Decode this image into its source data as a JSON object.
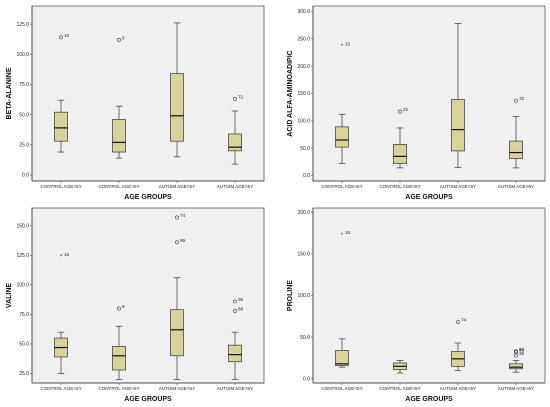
{
  "chart_data": [
    {
      "type": "box",
      "ylabel": "BETA-ALANINE",
      "xlabel": "AGE GROUPS",
      "ylim": [
        -5,
        140
      ],
      "yticks": [
        "0.0",
        "25.0",
        "50.0",
        "75.0",
        "100.0",
        "125.0"
      ],
      "ytick_values": [
        0,
        25,
        50,
        75,
        100,
        125
      ],
      "categories": [
        "CONTROL AGE<5Y",
        "CONTROL AGE>5Y",
        "AUTISM AGE<5Y",
        "AUTISM AGE>5Y"
      ],
      "boxes": [
        {
          "min": 19,
          "q1": 28,
          "median": 39,
          "q3": 52,
          "max": 62,
          "outliers": [
            {
              "value": 114,
              "label": "16",
              "kind": "circle"
            }
          ]
        },
        {
          "min": 14,
          "q1": 19,
          "median": 27,
          "q3": 46,
          "max": 57,
          "outliers": [
            {
              "value": 112,
              "label": "5",
              "kind": "circle"
            }
          ]
        },
        {
          "min": 15,
          "q1": 28,
          "median": 49,
          "q3": 84,
          "max": 126,
          "outliers": []
        },
        {
          "min": 9,
          "q1": 20,
          "median": 23,
          "q3": 34,
          "max": 53,
          "outliers": [
            {
              "value": 63,
              "label": "72",
              "kind": "circle"
            }
          ]
        }
      ]
    },
    {
      "type": "box",
      "ylabel": "ACID ALFA-AMINOADIPIC",
      "xlabel": "AGE GROUPS",
      "ylim": [
        -10,
        310
      ],
      "yticks": [
        "0.0",
        "50.0",
        "100.0",
        "150.0",
        "200.0",
        "250.0",
        "300.0"
      ],
      "ytick_values": [
        0,
        50,
        100,
        150,
        200,
        250,
        300
      ],
      "categories": [
        "CONTROL AGE<5Y",
        "CONTROL AGE>5Y",
        "AUTISM AGE<5Y",
        "AUTISM AGE>5Y"
      ],
      "boxes": [
        {
          "min": 22,
          "q1": 52,
          "median": 65,
          "q3": 89,
          "max": 112,
          "outliers": [
            {
              "value": 237,
              "label": "16",
              "kind": "star"
            }
          ]
        },
        {
          "min": 14,
          "q1": 22,
          "median": 35,
          "q3": 57,
          "max": 87,
          "outliers": [
            {
              "value": 117,
              "label": "25",
              "kind": "circle"
            }
          ]
        },
        {
          "min": 15,
          "q1": 45,
          "median": 84,
          "q3": 139,
          "max": 278,
          "outliers": []
        },
        {
          "min": 14,
          "q1": 31,
          "median": 42,
          "q3": 63,
          "max": 108,
          "outliers": [
            {
              "value": 137,
              "label": "72",
              "kind": "circle"
            }
          ]
        }
      ]
    },
    {
      "type": "box",
      "ylabel": "VALINE",
      "xlabel": "AGE GROUPS",
      "ylim": [
        17,
        165
      ],
      "yticks": [
        "25.0",
        "50.0",
        "75.0",
        "100.0",
        "125.0",
        "150.0"
      ],
      "ytick_values": [
        25,
        50,
        75,
        100,
        125,
        150
      ],
      "categories": [
        "CONTROL AGE<5Y",
        "CONTROL AGE>5Y",
        "AUTISM AGE<5Y",
        "AUTISM AGE>5Y"
      ],
      "boxes": [
        {
          "min": 25,
          "q1": 39,
          "median": 47,
          "q3": 55,
          "max": 60,
          "outliers": [
            {
              "value": 124,
              "label": "16",
              "kind": "star"
            }
          ]
        },
        {
          "min": 20,
          "q1": 28,
          "median": 40,
          "q3": 48,
          "max": 65,
          "outliers": [
            {
              "value": 80,
              "label": "9",
              "kind": "circle"
            }
          ]
        },
        {
          "min": 20,
          "q1": 40,
          "median": 62,
          "q3": 79,
          "max": 106,
          "outliers": [
            {
              "value": 157,
              "label": "74",
              "kind": "circle"
            },
            {
              "value": 136,
              "label": "69",
              "kind": "circle"
            }
          ]
        },
        {
          "min": 20,
          "q1": 35,
          "median": 41,
          "q3": 49,
          "max": 60,
          "outliers": [
            {
              "value": 86,
              "label": "36",
              "kind": "circle"
            },
            {
              "value": 78,
              "label": "68",
              "kind": "circle"
            }
          ]
        }
      ]
    },
    {
      "type": "box",
      "ylabel": "PROLINE",
      "xlabel": "AGE GROUPS",
      "ylim": [
        -5,
        205
      ],
      "yticks": [
        "0.0",
        "50.0",
        "100.0",
        "150.0",
        "200.0"
      ],
      "ytick_values": [
        0,
        50,
        100,
        150,
        200
      ],
      "categories": [
        "CONTROL AGE<5Y",
        "CONTROL AGE>5Y",
        "AUTISM AGE<5Y",
        "AUTISM AGE>5Y"
      ],
      "boxes": [
        {
          "min": 14,
          "q1": 16,
          "median": 18,
          "q3": 34,
          "max": 48,
          "outliers": [
            {
              "value": 173,
              "label": "16",
              "kind": "star"
            }
          ]
        },
        {
          "min": 7,
          "q1": 11,
          "median": 15,
          "q3": 19,
          "max": 22,
          "outliers": []
        },
        {
          "min": 10,
          "q1": 15,
          "median": 24,
          "q3": 33,
          "max": 43,
          "outliers": [
            {
              "value": 68,
              "label": "74",
              "kind": "circle"
            }
          ]
        },
        {
          "min": 8,
          "q1": 12,
          "median": 14,
          "q3": 18,
          "max": 22,
          "outliers": [
            {
              "value": 33,
              "label": "64",
              "kind": "circle"
            },
            {
              "value": 32,
              "label": "33",
              "kind": "circle"
            },
            {
              "value": 28,
              "label": "36",
              "kind": "circle"
            }
          ]
        }
      ]
    }
  ]
}
